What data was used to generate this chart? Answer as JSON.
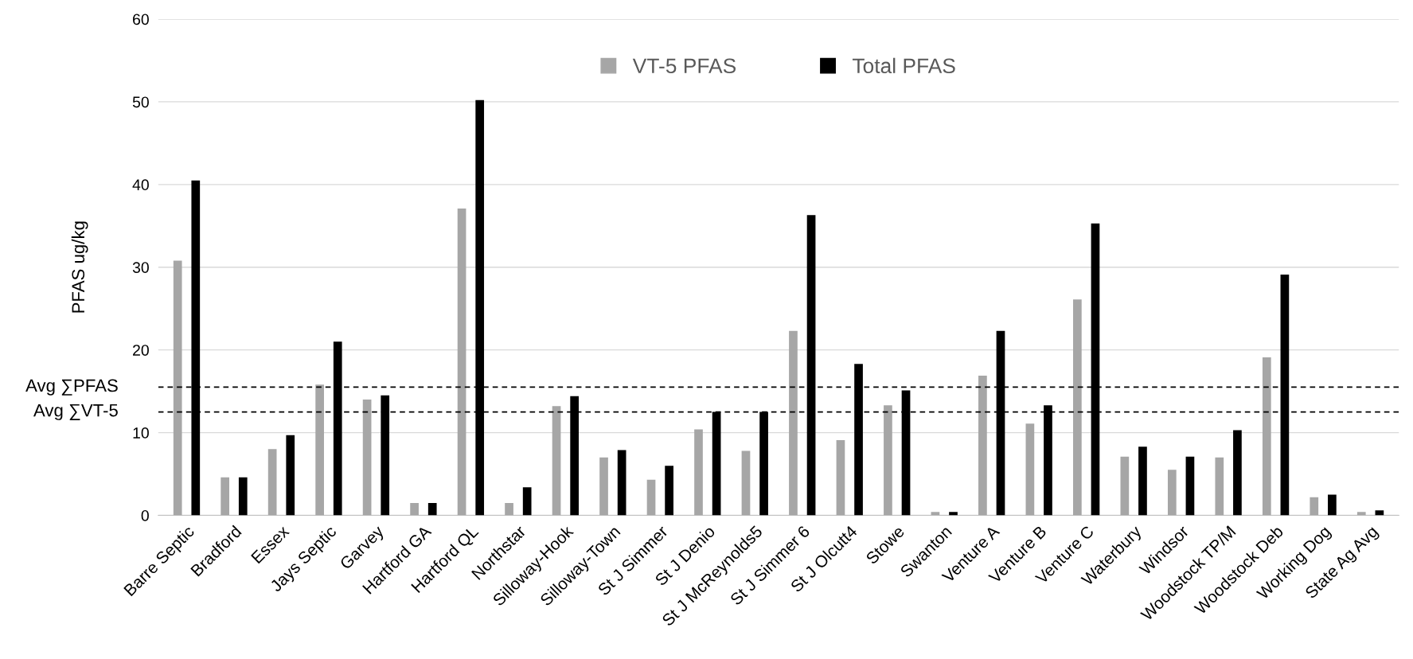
{
  "chart_data": {
    "type": "bar",
    "ylabel": "PFAS ug/kg",
    "categories": [
      "Barre Septic",
      "Bradford",
      "Essex",
      "Jays Septic",
      "Garvey",
      "Hartford GA",
      "Hartford QL",
      "Northstar",
      "Silloway-Hook",
      "Silloway-Town",
      "St J Simmer",
      "St J Denio",
      "St J McReynolds5",
      "St J Simmer 6",
      "St J Olcutt4",
      "Stowe",
      "Swanton",
      "Venture A",
      "Venture B",
      "Venture C",
      "Waterbury",
      "Windsor",
      "Woodstock TP/M",
      "Woodstock Deb",
      "Working Dog",
      "State Ag Avg"
    ],
    "series": [
      {
        "name": "VT-5 PFAS",
        "color": "#a6a6a6",
        "values": [
          30.8,
          4.6,
          8.0,
          15.8,
          14.0,
          1.5,
          37.1,
          1.5,
          13.2,
          7.0,
          4.3,
          10.4,
          7.8,
          22.3,
          9.1,
          13.3,
          0.4,
          16.9,
          11.1,
          26.1,
          7.1,
          5.5,
          7.0,
          19.1,
          2.2,
          0.4
        ]
      },
      {
        "name": "Total PFAS",
        "color": "#000000",
        "values": [
          40.5,
          4.6,
          9.7,
          21.0,
          14.5,
          1.5,
          50.2,
          3.4,
          14.4,
          7.9,
          6.0,
          12.5,
          12.5,
          36.3,
          18.3,
          15.1,
          0.4,
          22.3,
          13.3,
          35.3,
          8.3,
          7.1,
          10.3,
          29.1,
          2.5,
          0.6
        ]
      }
    ],
    "ylim": [
      0,
      60
    ],
    "yticks": [
      0,
      10,
      20,
      30,
      40,
      50,
      60
    ],
    "grid": "y",
    "legend": "top",
    "ref_lines": [
      {
        "axis": "y",
        "value": 15.5,
        "label": "Avg ∑PFAS",
        "color": "#000000",
        "line_style": "dashed"
      },
      {
        "axis": "y",
        "value": 12.5,
        "label": "Avg ∑VT-5",
        "color": "#000000",
        "line_style": "dashed"
      }
    ]
  }
}
